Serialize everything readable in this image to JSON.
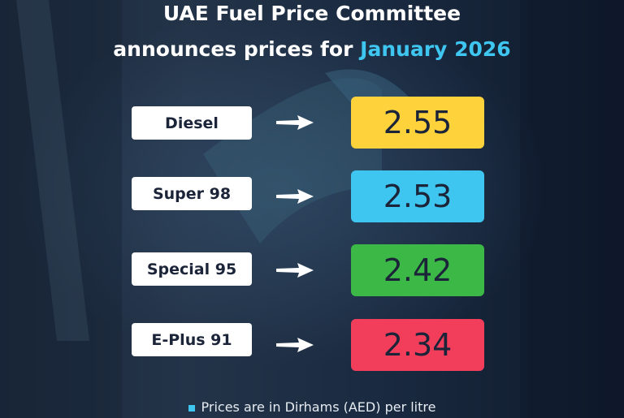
{
  "title": {
    "line1": "UAE Fuel Price Committee",
    "line2_prefix": "announces prices for ",
    "line2_highlight": "January 2026"
  },
  "fuels": [
    {
      "name": "Diesel",
      "price": "2.55",
      "color": "#fdd23a"
    },
    {
      "name": "Super 98",
      "price": "2.53",
      "color": "#3ec6f0"
    },
    {
      "name": "Special 95",
      "price": "2.42",
      "color": "#3bb845"
    },
    {
      "name": "E-Plus 91",
      "price": "2.34",
      "color": "#f23e5a"
    }
  ],
  "note": "Prices are in Dirhams (AED) per litre",
  "colors": {
    "accent": "#3ec6f0",
    "text_dark": "#1b2438"
  }
}
